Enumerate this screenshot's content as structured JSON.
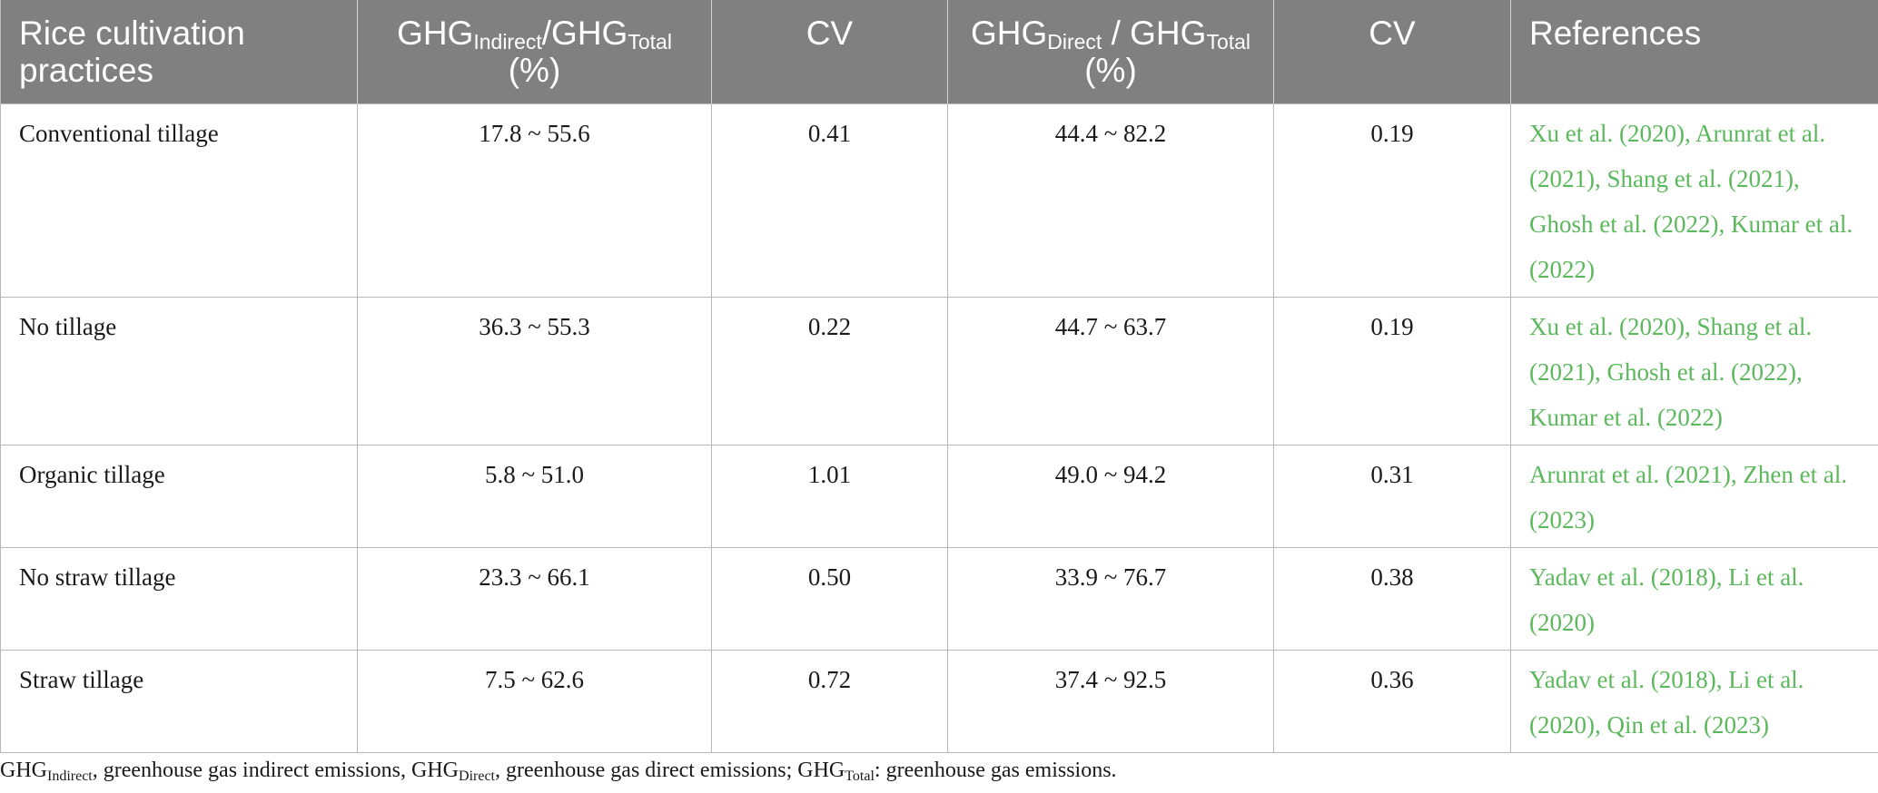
{
  "header": {
    "col1": "Rice cultivation practices",
    "col2_main": "GHG",
    "col2_sub1": "Indirect",
    "col2_mid": "/GHG",
    "col2_sub2": "Total",
    "col2_unit": "(%)",
    "col3": "CV",
    "col4_main": "GHG",
    "col4_sub1": "Direct",
    "col4_mid": " / GHG",
    "col4_sub2": "Total",
    "col4_unit": "(%)",
    "col5": "CV",
    "col6": "References"
  },
  "rows": [
    {
      "practice": "Conventional tillage",
      "indirect": "17.8 ~ 55.6",
      "cv1": "0.41",
      "direct": "44.4 ~ 82.2",
      "cv2": "0.19",
      "refs": "Xu et al. (2020), Arunrat et al. (2021), Shang et al. (2021), Ghosh et al. (2022), Kumar et al. (2022)"
    },
    {
      "practice": "No tillage",
      "indirect": "36.3 ~ 55.3",
      "cv1": "0.22",
      "direct": "44.7 ~ 63.7",
      "cv2": "0.19",
      "refs": "Xu et al. (2020), Shang et al. (2021), Ghosh et al. (2022), Kumar et al. (2022)"
    },
    {
      "practice": "Organic tillage",
      "indirect": "5.8 ~ 51.0",
      "cv1": "1.01",
      "direct": "49.0 ~ 94.2",
      "cv2": "0.31",
      "refs": "Arunrat et al. (2021), Zhen et al. (2023)"
    },
    {
      "practice": "No straw tillage",
      "indirect": "23.3 ~ 66.1",
      "cv1": "0.50",
      "direct": "33.9 ~ 76.7",
      "cv2": "0.38",
      "refs": "Yadav et al. (2018), Li et al. (2020)"
    },
    {
      "practice": "Straw tillage",
      "indirect": "7.5 ~ 62.6",
      "cv1": "0.72",
      "direct": "37.4 ~ 92.5",
      "cv2": "0.36",
      "refs": "Yadav et al. (2018), Li et al. (2020), Qin et al. (2023)"
    }
  ],
  "footnote": {
    "p1": "GHG",
    "s1": "Indirect",
    "p2": ", greenhouse gas indirect emissions, GHG",
    "s2": "Direct",
    "p3": ", greenhouse gas direct emissions; GHG",
    "s3": "Total",
    "p4": ": greenhouse gas emissions."
  },
  "colors": {
    "header_bg": "#808080",
    "reference_link": "#5cb85c"
  }
}
